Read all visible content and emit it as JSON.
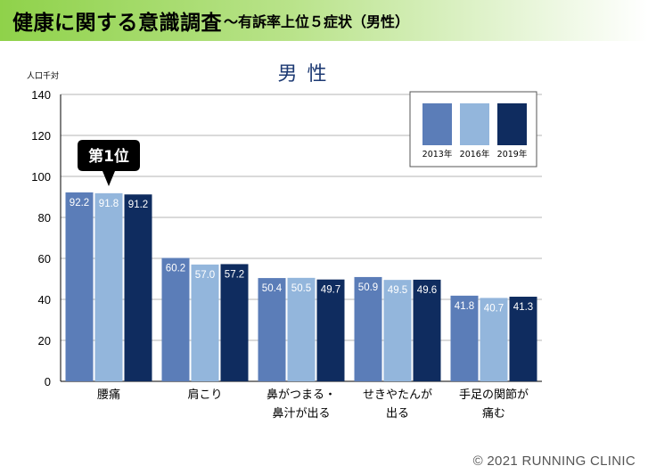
{
  "header": {
    "title": "健康に関する意識調査",
    "subtitle": "～有訴率上位５症状（男性）"
  },
  "chart_data": {
    "type": "bar",
    "title": "男 性",
    "ylabel": "人口千対",
    "ylim": [
      0,
      140
    ],
    "yticks": [
      0,
      20,
      40,
      60,
      80,
      100,
      120,
      140
    ],
    "grid": true,
    "legend_position": "top-right",
    "categories": [
      [
        "腰痛"
      ],
      [
        "肩こり"
      ],
      [
        "鼻がつまる・",
        "鼻汁が出る"
      ],
      [
        "せきやたんが",
        "出る"
      ],
      [
        "手足の関節が",
        "痛む"
      ]
    ],
    "series": [
      {
        "name": "2013年",
        "color": "#5b7db8",
        "values": [
          92.2,
          60.2,
          50.4,
          50.9,
          41.8
        ],
        "labels": [
          "92.2",
          "60.2",
          "50.4",
          "50.9",
          "41.8"
        ]
      },
      {
        "name": "2016年",
        "color": "#93b6dc",
        "values": [
          91.8,
          57.0,
          50.5,
          49.5,
          40.7
        ],
        "labels": [
          "91.8",
          "57.0",
          "50.5",
          "49.5",
          "40.7"
        ]
      },
      {
        "name": "2019年",
        "color": "#0f2c5f",
        "values": [
          91.2,
          57.2,
          49.7,
          49.6,
          41.3
        ],
        "labels": [
          "91.2",
          "57.2",
          "49.7",
          "49.6",
          "41.3"
        ]
      }
    ],
    "callout": {
      "text": "第1位",
      "category_index": 0
    }
  },
  "footer": {
    "copyright": "© 2021 RUNNING  CLINIC"
  }
}
